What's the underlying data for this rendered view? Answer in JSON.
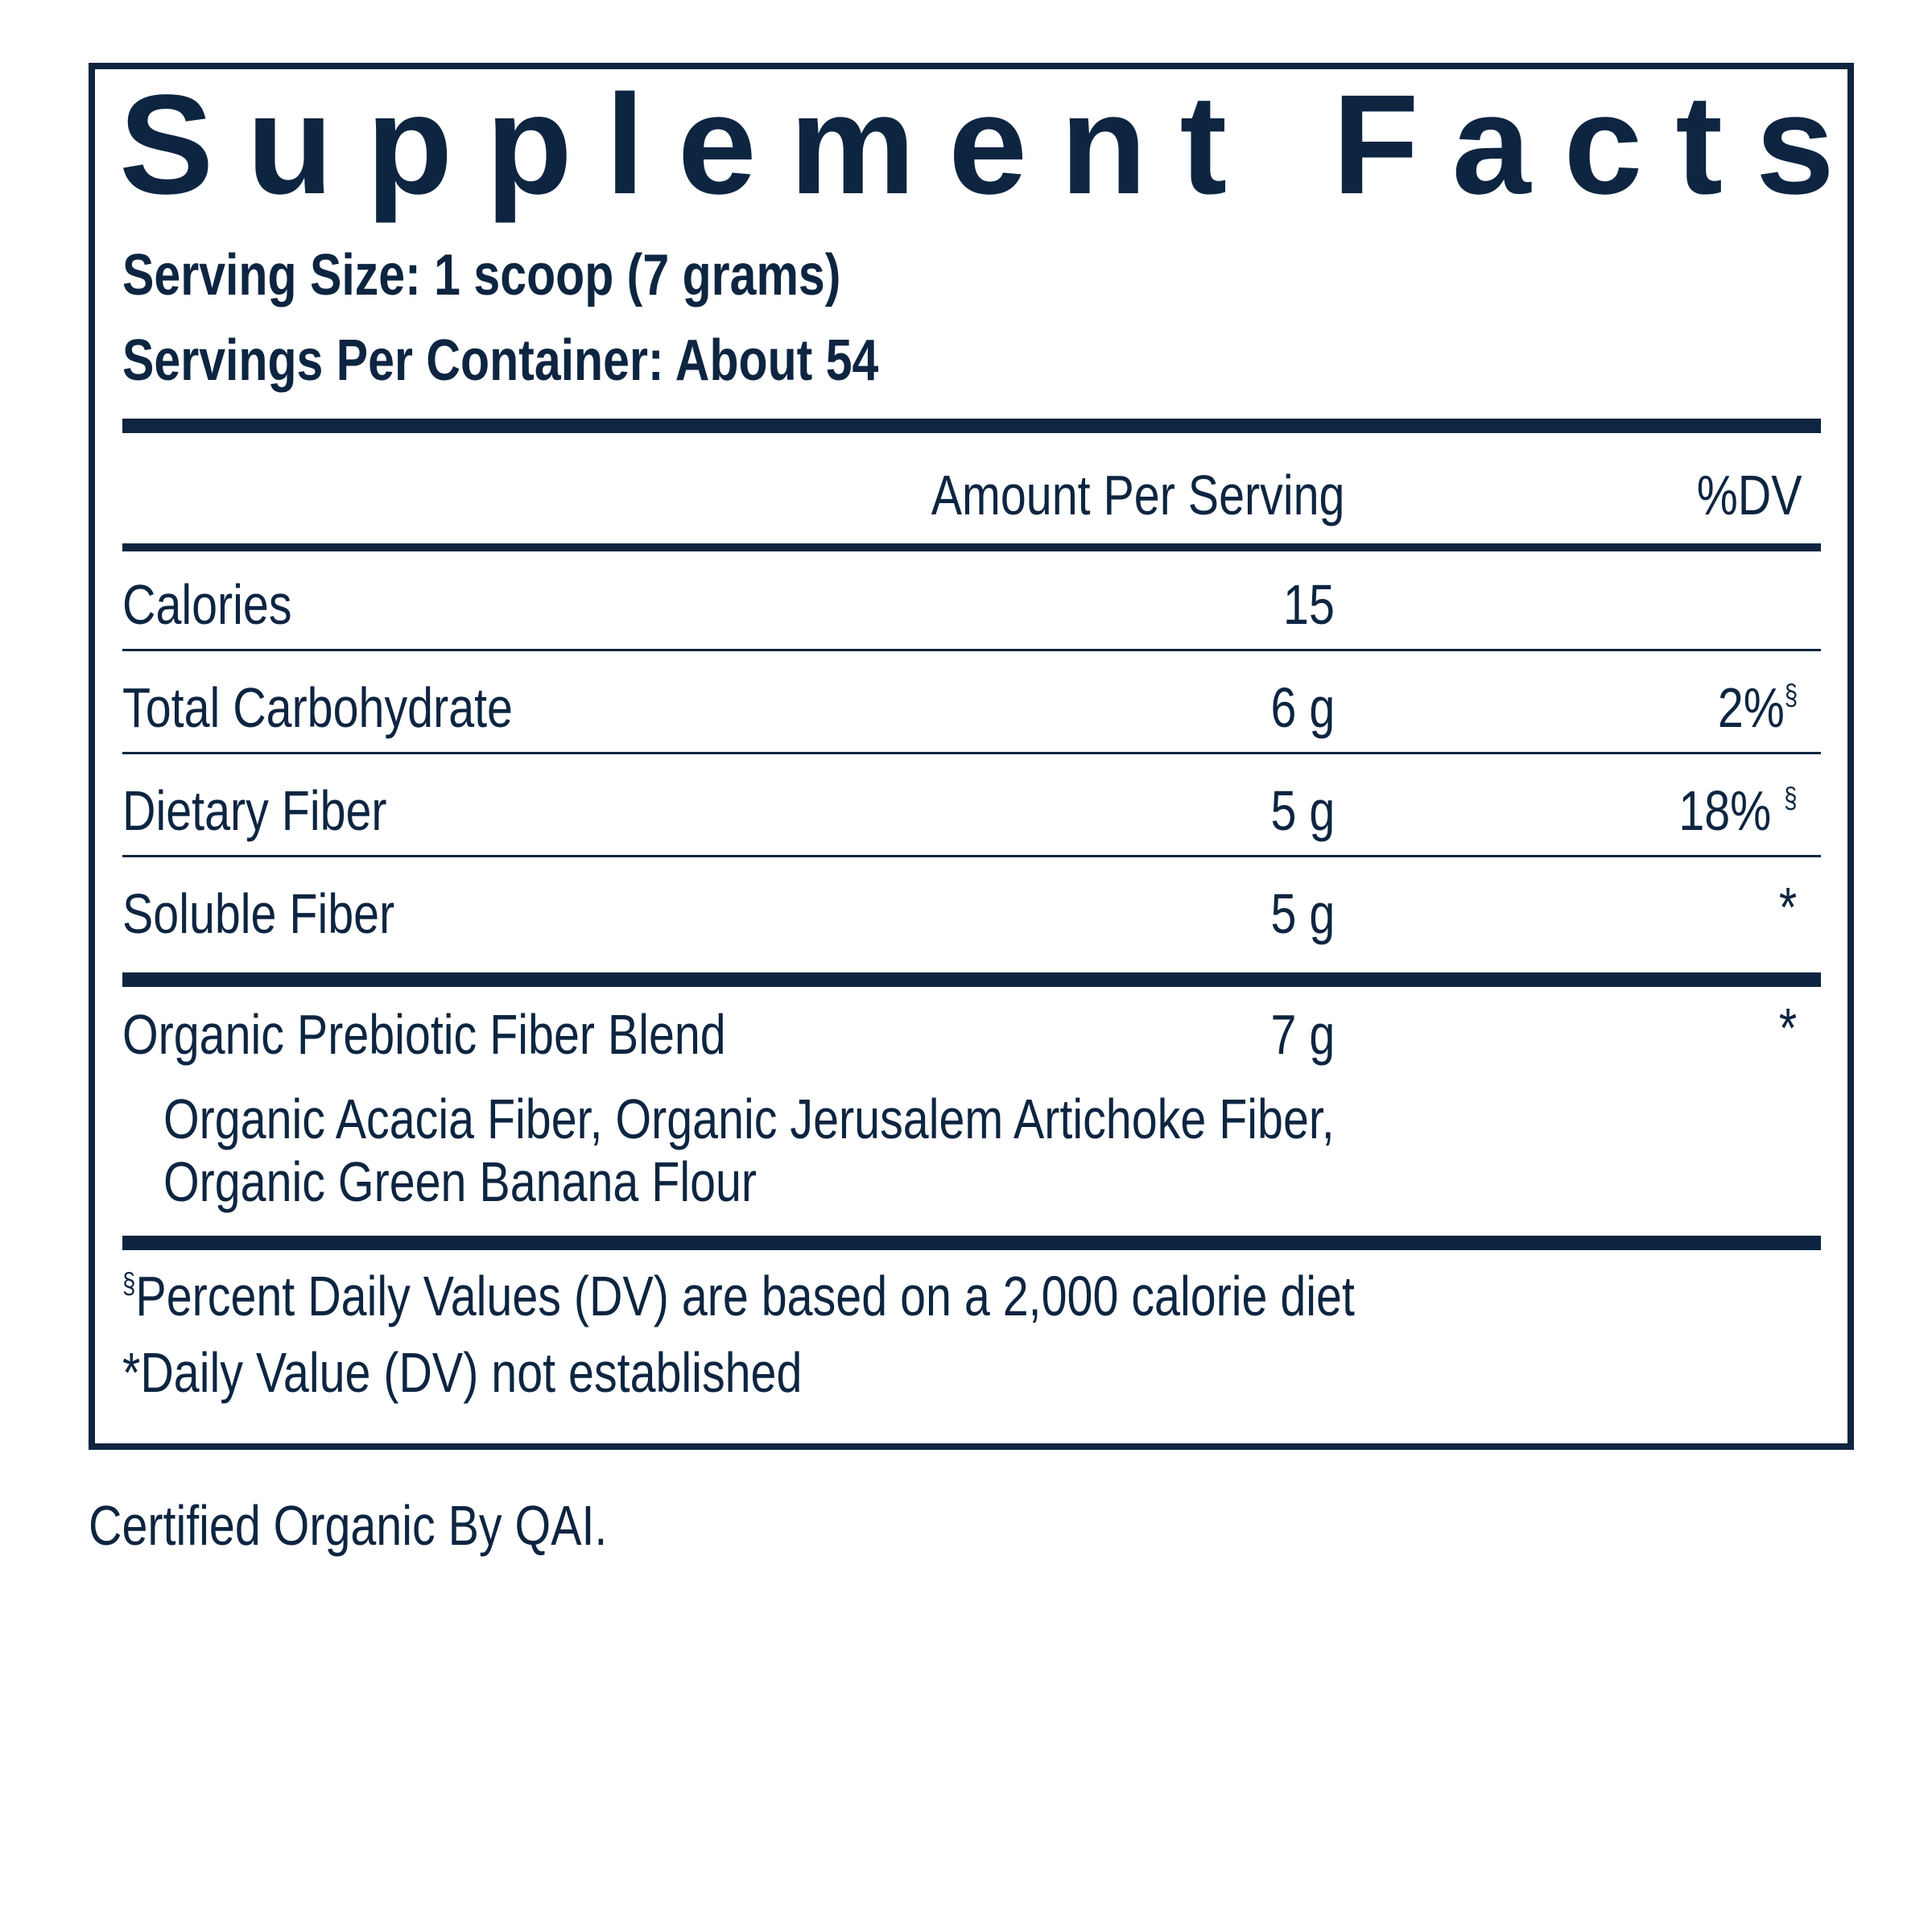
{
  "title": "Supplement Facts",
  "serving_size": "Serving Size: 1 scoop (7 grams)",
  "servings_per_container": "Servings Per Container: About 54",
  "header": {
    "amount": "Amount Per Serving",
    "dv": "%DV"
  },
  "nutrients": [
    {
      "name": "Calories",
      "amount": "15",
      "dv": ""
    },
    {
      "name": "Total Carbohydrate",
      "amount": "6 g",
      "dv": "2%",
      "dv_mark": "§"
    },
    {
      "name": "Dietary Fiber",
      "amount": "5 g",
      "dv": "18%",
      "dv_mark": "§"
    },
    {
      "name": "Soluble Fiber",
      "amount": "5 g",
      "dv": "*"
    }
  ],
  "blend": {
    "name": "Organic Prebiotic Fiber Blend",
    "amount": "7 g",
    "dv": "*",
    "ingredients_line1": "Organic Acacia Fiber, Organic Jerusalem Artichoke Fiber,",
    "ingredients_line2": "Organic Green Banana Flour"
  },
  "footnotes": {
    "percent_mark": "§",
    "percent_note": "Percent Daily Values (DV) are based on a 2,000 calorie diet",
    "not_established": "*Daily Value (DV) not established"
  },
  "certification": "Certified Organic By QAI."
}
